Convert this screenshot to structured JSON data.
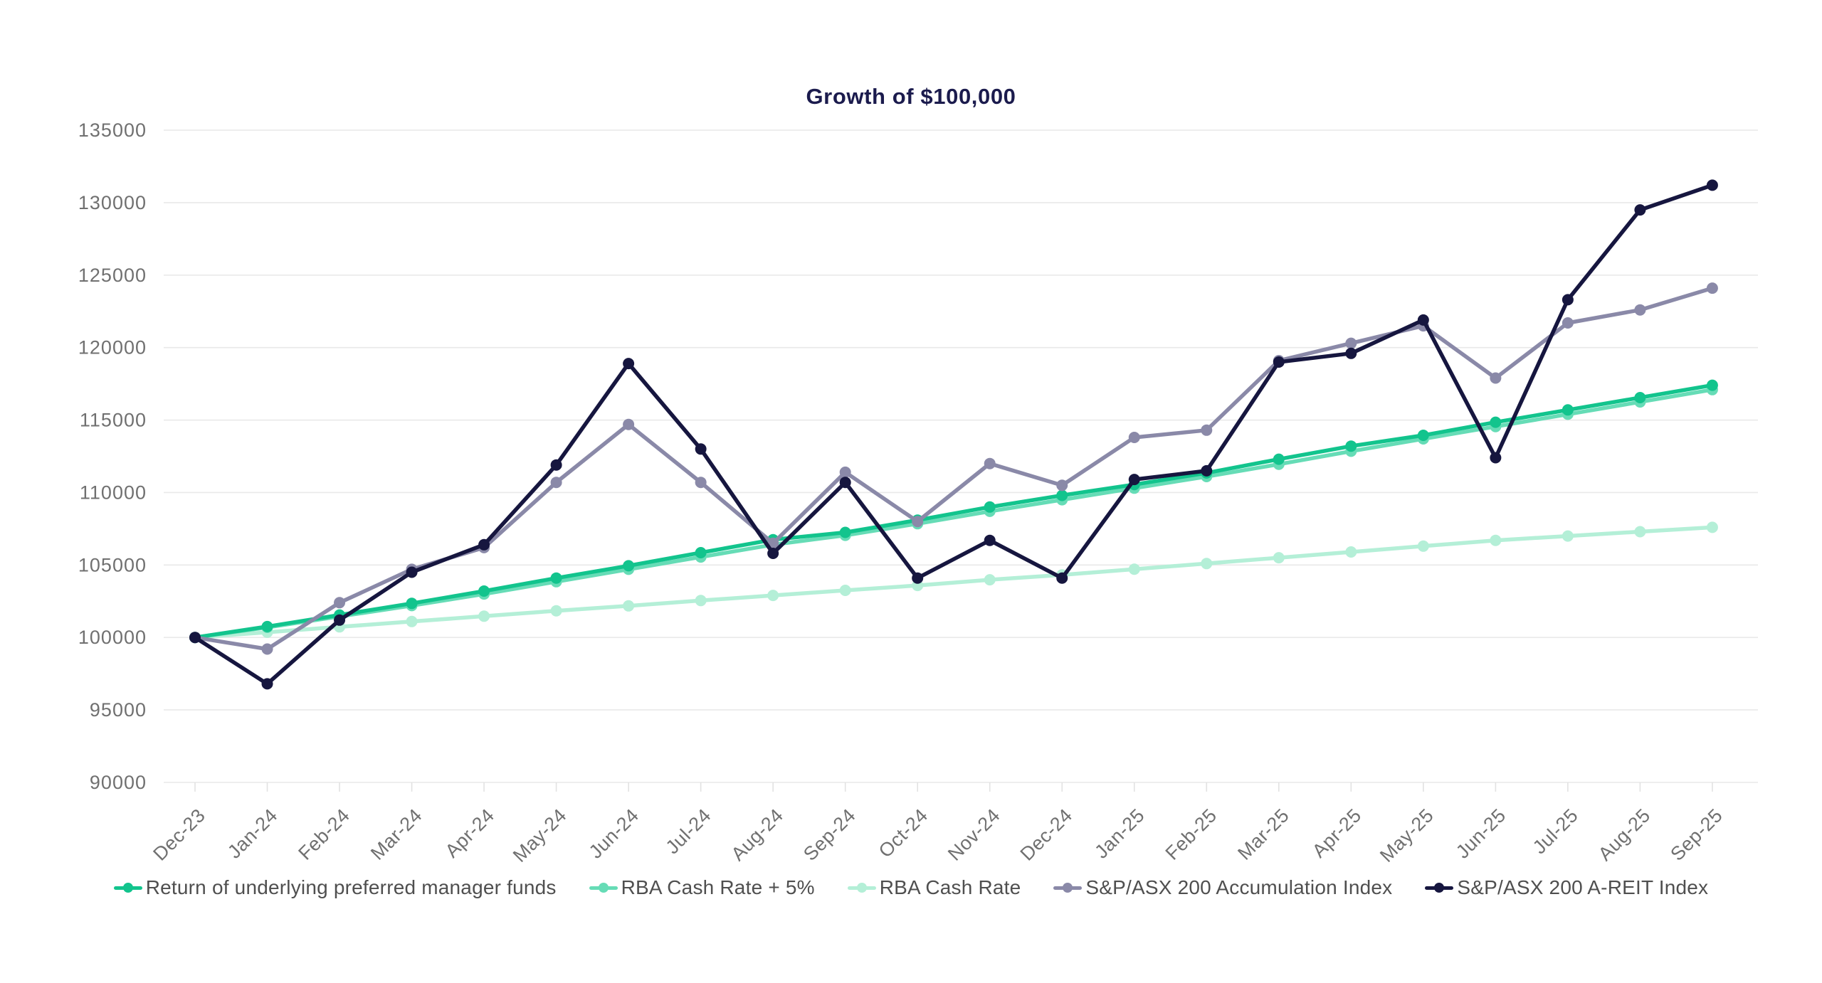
{
  "title": "Growth of $100,000",
  "colors": {
    "title": "#1b1b4d",
    "axis_label": "#707070",
    "legend_label": "#4f4f4f",
    "gridline": "#e9e9e9",
    "tick": "#e2e2e2",
    "background": "#ffffff"
  },
  "chart_data": {
    "type": "line",
    "title": "Growth of $100,000",
    "xlabel": "",
    "ylabel": "",
    "ylim": [
      90000,
      135000
    ],
    "y_ticks": [
      90000,
      95000,
      100000,
      105000,
      110000,
      115000,
      120000,
      125000,
      130000,
      135000
    ],
    "grid": "horizontal",
    "legend_position": "bottom",
    "marker": "circle",
    "categories": [
      "Dec-23",
      "Jan-24",
      "Feb-24",
      "Mar-24",
      "Apr-24",
      "May-24",
      "Jun-24",
      "Jul-24",
      "Aug-24",
      "Sep-24",
      "Oct-24",
      "Nov-24",
      "Dec-24",
      "Jan-25",
      "Feb-25",
      "Mar-25",
      "Apr-25",
      "May-25",
      "Jun-25",
      "Jul-25",
      "Aug-25",
      "Sep-25"
    ],
    "series": [
      {
        "name": "Return of underlying preferred manager funds",
        "color": "#12c48d",
        "values": [
          100000,
          100750,
          101550,
          102350,
          103200,
          104100,
          104950,
          105850,
          106750,
          107250,
          108100,
          109000,
          109800,
          110550,
          111350,
          112300,
          113200,
          113950,
          114850,
          115700,
          116550,
          117400
        ]
      },
      {
        "name": "RBA Cash Rate + 5%",
        "color": "#66dcb6",
        "values": [
          100000,
          100700,
          101450,
          102200,
          103000,
          103850,
          104700,
          105550,
          106400,
          107050,
          107850,
          108700,
          109500,
          110300,
          111100,
          111950,
          112850,
          113700,
          114550,
          115400,
          116250,
          117100
        ]
      },
      {
        "name": "RBA Cash Rate",
        "color": "#b4efd7",
        "values": [
          100000,
          100360,
          100730,
          101100,
          101470,
          101840,
          102180,
          102550,
          102900,
          103250,
          103590,
          103980,
          104320,
          104710,
          105100,
          105500,
          105900,
          106300,
          106700,
          107000,
          107300,
          107600
        ]
      },
      {
        "name": "S&P/ASX 200 Accumulation Index",
        "color": "#8a89a8",
        "values": [
          100000,
          99200,
          102400,
          104700,
          106200,
          110700,
          114700,
          110700,
          106500,
          111400,
          108000,
          112000,
          110500,
          113800,
          114300,
          119100,
          120300,
          121500,
          117900,
          121700,
          122600,
          124100
        ]
      },
      {
        "name": "S&P/ASX 200 A-REIT Index",
        "color": "#16163f",
        "values": [
          100000,
          96800,
          101200,
          104500,
          106400,
          111900,
          118900,
          113000,
          105800,
          110700,
          104100,
          106700,
          104100,
          110900,
          111500,
          119000,
          119600,
          121900,
          112400,
          123300,
          129500,
          131200
        ]
      }
    ],
    "draw_order": [
      2,
      1,
      0,
      3,
      4
    ]
  }
}
